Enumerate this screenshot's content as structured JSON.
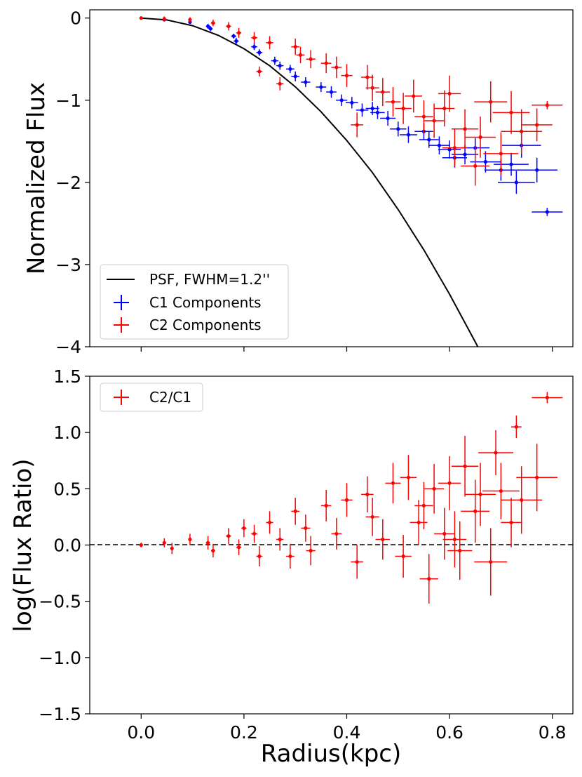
{
  "chart_data": [
    {
      "type": "scatter",
      "panel": "top",
      "ylabel": "Normalized Flux",
      "xlim": [
        -0.1,
        0.84
      ],
      "ylim": [
        -4,
        0.1
      ],
      "yticks": [
        0,
        -1,
        -2,
        -3,
        -4
      ],
      "ytick_labels": [
        "0",
        "−1",
        "−2",
        "−3",
        "−4"
      ],
      "legend": {
        "placement": "lower-left",
        "entries": [
          "PSF, FWHM=1.2''",
          "C1 Components",
          "C2 Components"
        ]
      },
      "series": [
        {
          "name": "PSF, FWHM=1.2''",
          "kind": "line",
          "color": "#000000",
          "x": [
            0.0,
            0.05,
            0.1,
            0.15,
            0.2,
            0.25,
            0.3,
            0.35,
            0.4,
            0.45,
            0.5,
            0.55,
            0.6,
            0.65,
            0.655
          ],
          "y": [
            0.0,
            -0.023,
            -0.093,
            -0.21,
            -0.373,
            -0.58,
            -0.837,
            -1.14,
            -1.49,
            -1.88,
            -2.33,
            -2.82,
            -3.36,
            -3.94,
            -4.0
          ]
        },
        {
          "name": "C1 Components",
          "kind": "errorbar",
          "color": "#0000ff",
          "x": [
            0.045,
            0.095,
            0.13,
            0.135,
            0.18,
            0.185,
            0.22,
            0.23,
            0.26,
            0.27,
            0.29,
            0.3,
            0.32,
            0.35,
            0.37,
            0.39,
            0.41,
            0.43,
            0.45,
            0.46,
            0.48,
            0.5,
            0.52,
            0.55,
            0.56,
            0.58,
            0.6,
            0.61,
            0.63,
            0.65,
            0.67,
            0.7,
            0.72,
            0.73,
            0.74,
            0.77,
            0.79
          ],
          "y": [
            -0.02,
            -0.05,
            -0.1,
            -0.13,
            -0.22,
            -0.28,
            -0.35,
            -0.42,
            -0.52,
            -0.58,
            -0.62,
            -0.71,
            -0.78,
            -0.84,
            -0.9,
            -1.0,
            -1.03,
            -1.12,
            -1.1,
            -1.15,
            -1.22,
            -1.35,
            -1.42,
            -1.38,
            -1.48,
            -1.55,
            -1.6,
            -1.7,
            -1.66,
            -1.58,
            -1.75,
            -1.85,
            -1.78,
            -2.0,
            -1.55,
            -1.85,
            -2.36
          ],
          "xerr": [
            0.003,
            0.003,
            0.004,
            0.004,
            0.005,
            0.005,
            0.006,
            0.006,
            0.007,
            0.007,
            0.008,
            0.008,
            0.009,
            0.01,
            0.01,
            0.011,
            0.012,
            0.012,
            0.013,
            0.014,
            0.015,
            0.016,
            0.017,
            0.018,
            0.019,
            0.02,
            0.022,
            0.024,
            0.026,
            0.028,
            0.03,
            0.032,
            0.034,
            0.036,
            0.038,
            0.04,
            0.03
          ],
          "yerr": [
            0.02,
            0.02,
            0.03,
            0.03,
            0.03,
            0.04,
            0.04,
            0.04,
            0.05,
            0.05,
            0.05,
            0.06,
            0.06,
            0.06,
            0.07,
            0.07,
            0.07,
            0.08,
            0.08,
            0.08,
            0.09,
            0.09,
            0.1,
            0.1,
            0.1,
            0.11,
            0.11,
            0.12,
            0.12,
            0.12,
            0.13,
            0.13,
            0.14,
            0.14,
            0.15,
            0.15,
            0.05
          ]
        },
        {
          "name": "C2 Components",
          "kind": "errorbar",
          "color": "#ff0000",
          "x": [
            0.0,
            0.045,
            0.095,
            0.14,
            0.17,
            0.19,
            0.22,
            0.23,
            0.25,
            0.27,
            0.3,
            0.31,
            0.33,
            0.36,
            0.38,
            0.4,
            0.42,
            0.44,
            0.45,
            0.47,
            0.49,
            0.51,
            0.53,
            0.55,
            0.57,
            0.59,
            0.6,
            0.61,
            0.63,
            0.65,
            0.66,
            0.68,
            0.7,
            0.72,
            0.74,
            0.77,
            0.79
          ],
          "y": [
            0.0,
            -0.01,
            -0.02,
            -0.06,
            -0.1,
            -0.18,
            -0.24,
            -0.65,
            -0.3,
            -0.8,
            -0.35,
            -0.45,
            -0.5,
            -0.55,
            -0.6,
            -0.7,
            -1.3,
            -0.72,
            -0.85,
            -0.9,
            -1.02,
            -1.1,
            -0.95,
            -1.2,
            -1.25,
            -1.1,
            -0.92,
            -1.58,
            -1.35,
            -1.8,
            -1.45,
            -1.02,
            -1.65,
            -1.15,
            -1.38,
            -1.3,
            -1.06
          ],
          "xerr": [
            0.002,
            0.003,
            0.003,
            0.004,
            0.005,
            0.005,
            0.006,
            0.006,
            0.007,
            0.007,
            0.008,
            0.008,
            0.009,
            0.01,
            0.01,
            0.011,
            0.012,
            0.012,
            0.013,
            0.014,
            0.015,
            0.016,
            0.017,
            0.018,
            0.019,
            0.02,
            0.022,
            0.024,
            0.026,
            0.028,
            0.03,
            0.032,
            0.034,
            0.036,
            0.04,
            0.03,
            0.03
          ],
          "yerr": [
            0.02,
            0.03,
            0.03,
            0.04,
            0.05,
            0.06,
            0.07,
            0.06,
            0.08,
            0.08,
            0.1,
            0.1,
            0.11,
            0.12,
            0.13,
            0.14,
            0.15,
            0.15,
            0.16,
            0.17,
            0.18,
            0.19,
            0.2,
            0.2,
            0.21,
            0.22,
            0.22,
            0.23,
            0.24,
            0.24,
            0.25,
            0.25,
            0.26,
            0.26,
            0.27,
            0.2,
            0.05
          ]
        }
      ]
    },
    {
      "type": "scatter",
      "panel": "bottom",
      "xlabel": "Radius(kpc)",
      "ylabel": "log(Flux Ratio)",
      "xlim": [
        -0.1,
        0.84
      ],
      "ylim": [
        -1.5,
        1.5
      ],
      "xticks": [
        0.0,
        0.2,
        0.4,
        0.6,
        0.8
      ],
      "xtick_labels": [
        "0.0",
        "0.2",
        "0.4",
        "0.6",
        "0.8"
      ],
      "yticks": [
        1.5,
        1.0,
        0.5,
        0.0,
        -0.5,
        -1.0,
        -1.5
      ],
      "ytick_labels": [
        "1.5",
        "1.0",
        "0.5",
        "0.0",
        "−0.5",
        "−1.0",
        "−1.5"
      ],
      "reference_line": {
        "y": 0.0,
        "style": "dashed",
        "color": "#000000"
      },
      "legend": {
        "placement": "top-left",
        "entries": [
          "C2/C1"
        ]
      },
      "series": [
        {
          "name": "C2/C1",
          "kind": "errorbar",
          "color": "#ff0000",
          "x": [
            0.0,
            0.045,
            0.06,
            0.095,
            0.13,
            0.14,
            0.17,
            0.19,
            0.2,
            0.22,
            0.23,
            0.25,
            0.27,
            0.29,
            0.3,
            0.32,
            0.33,
            0.36,
            0.38,
            0.4,
            0.42,
            0.44,
            0.45,
            0.47,
            0.49,
            0.51,
            0.52,
            0.54,
            0.55,
            0.56,
            0.57,
            0.59,
            0.6,
            0.61,
            0.62,
            0.63,
            0.65,
            0.66,
            0.68,
            0.69,
            0.7,
            0.72,
            0.73,
            0.74,
            0.77,
            0.79
          ],
          "y": [
            0.0,
            0.02,
            -0.03,
            0.05,
            0.02,
            -0.05,
            0.08,
            -0.02,
            0.15,
            0.1,
            -0.1,
            0.2,
            0.05,
            -0.1,
            0.3,
            0.15,
            -0.05,
            0.35,
            0.1,
            0.4,
            -0.15,
            0.45,
            0.25,
            0.05,
            0.55,
            -0.1,
            0.6,
            0.2,
            0.35,
            -0.3,
            0.5,
            0.1,
            0.55,
            0.05,
            -0.05,
            0.7,
            0.3,
            0.45,
            -0.15,
            0.82,
            0.48,
            0.2,
            1.05,
            0.4,
            0.6,
            1.31
          ],
          "xerr": [
            0.002,
            0.003,
            0.003,
            0.003,
            0.004,
            0.004,
            0.005,
            0.005,
            0.005,
            0.006,
            0.006,
            0.007,
            0.007,
            0.008,
            0.008,
            0.009,
            0.009,
            0.01,
            0.01,
            0.011,
            0.012,
            0.012,
            0.013,
            0.014,
            0.015,
            0.016,
            0.016,
            0.017,
            0.018,
            0.018,
            0.019,
            0.02,
            0.022,
            0.023,
            0.024,
            0.026,
            0.028,
            0.03,
            0.032,
            0.034,
            0.036,
            0.02,
            0.01,
            0.04,
            0.04,
            0.03
          ],
          "yerr": [
            0.02,
            0.04,
            0.05,
            0.05,
            0.06,
            0.06,
            0.07,
            0.07,
            0.08,
            0.08,
            0.09,
            0.1,
            0.1,
            0.11,
            0.12,
            0.12,
            0.13,
            0.14,
            0.14,
            0.15,
            0.15,
            0.16,
            0.17,
            0.18,
            0.18,
            0.19,
            0.2,
            0.2,
            0.21,
            0.22,
            0.22,
            0.23,
            0.24,
            0.25,
            0.26,
            0.27,
            0.28,
            0.28,
            0.3,
            0.2,
            0.25,
            0.22,
            0.1,
            0.3,
            0.3,
            0.05
          ]
        }
      ]
    }
  ]
}
